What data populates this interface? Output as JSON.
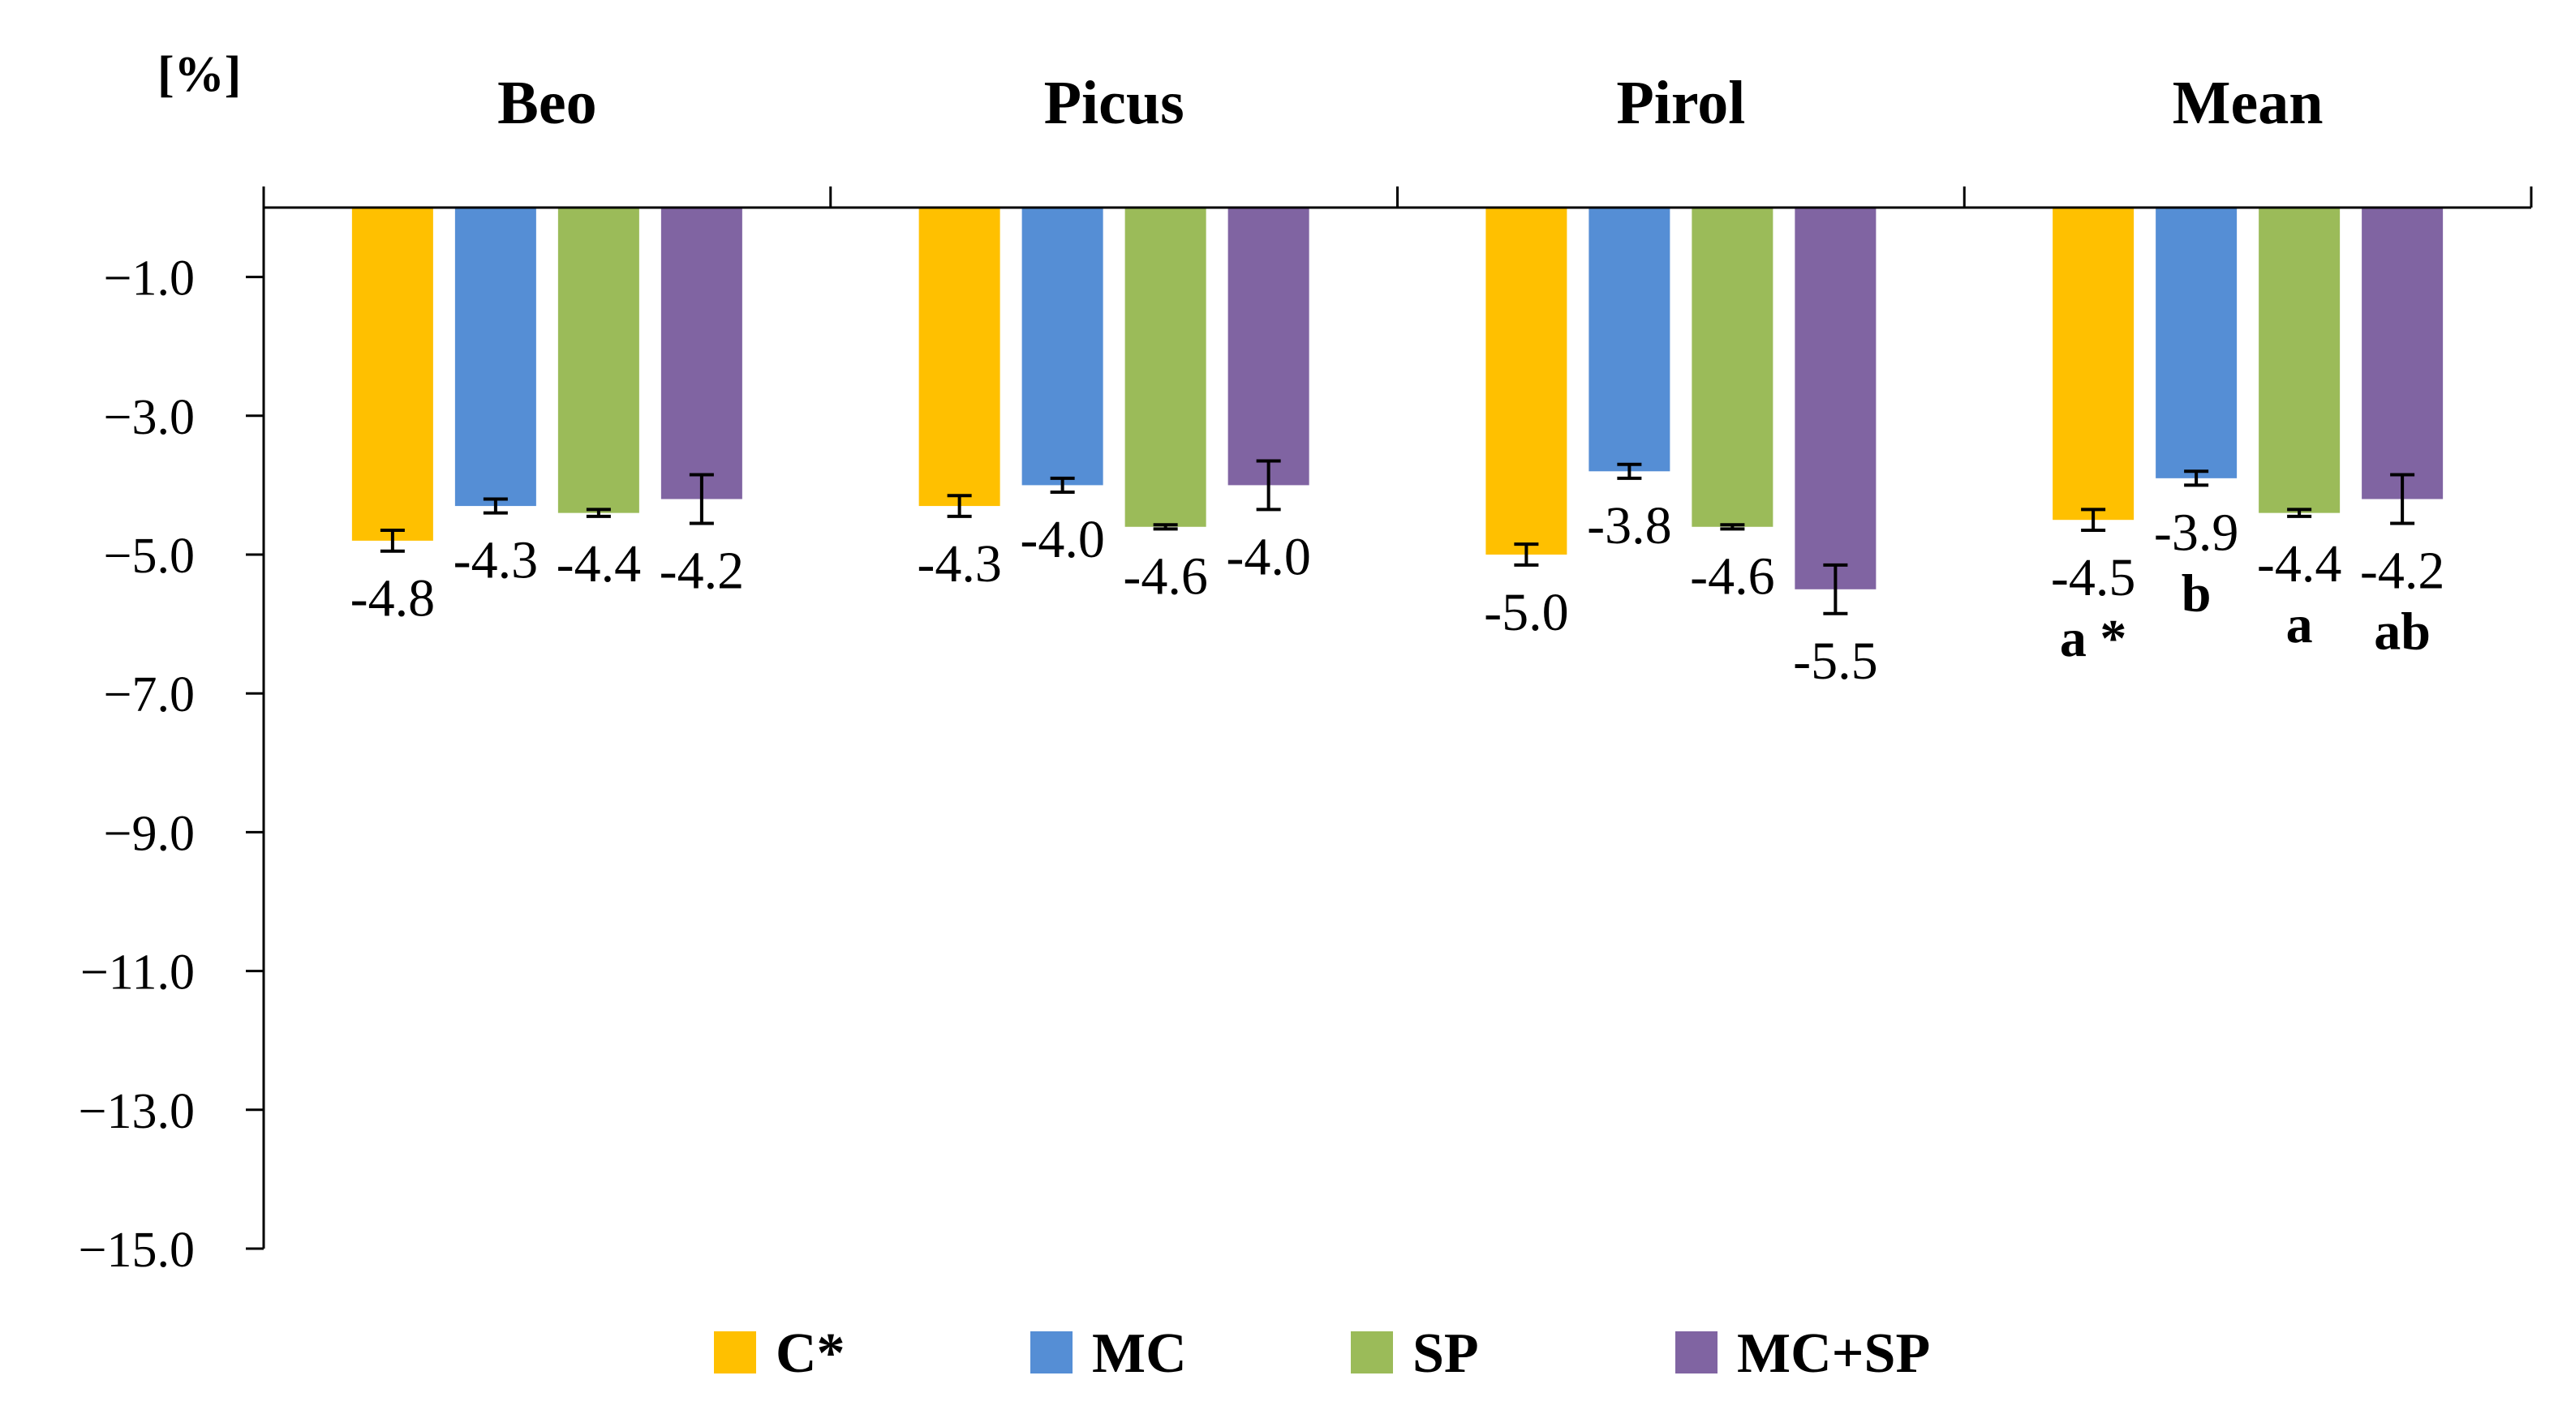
{
  "chart_data": {
    "type": "bar",
    "ylabel": "[%]",
    "ylim": [
      -15,
      0
    ],
    "yticks": [
      -1,
      -3,
      -5,
      -7,
      -9,
      -11,
      -13,
      -15
    ],
    "ytick_labels": [
      "−1.0",
      "−3.0",
      "−5.0",
      "−7.0",
      "−9.0",
      "−11.0",
      "−13.0",
      "−15.0"
    ],
    "categories": [
      "Beo",
      "Picus",
      "Pirol",
      "Mean"
    ],
    "series": [
      {
        "name": "C*",
        "color": "#FFC000",
        "values": [
          -4.8,
          -4.3,
          -5.0,
          -4.5
        ],
        "errors": [
          0.15,
          0.15,
          0.15,
          0.15
        ],
        "labels": [
          "-4.8",
          "-4.3",
          "-5.0",
          "-4.5"
        ],
        "letters": [
          "",
          "",
          "",
          "a *"
        ]
      },
      {
        "name": "MC",
        "color": "#558ED5",
        "values": [
          -4.3,
          -4.0,
          -3.8,
          -3.9
        ],
        "errors": [
          0.1,
          0.1,
          0.1,
          0.1
        ],
        "labels": [
          "-4.3",
          "-4.0",
          "-3.8",
          "-3.9"
        ],
        "letters": [
          "",
          "",
          "",
          "b"
        ]
      },
      {
        "name": "SP",
        "color": "#9BBB59",
        "values": [
          -4.4,
          -4.6,
          -4.6,
          -4.4
        ],
        "errors": [
          0.05,
          0.03,
          0.03,
          0.05
        ],
        "labels": [
          "-4.4",
          "-4.6",
          "-4.6",
          "-4.4"
        ],
        "letters": [
          "",
          "",
          "",
          "a"
        ]
      },
      {
        "name": "MC+SP",
        "color": "#8064A2",
        "values": [
          -4.2,
          -4.0,
          -5.5,
          -4.2
        ],
        "errors": [
          0.35,
          0.35,
          0.35,
          0.35
        ],
        "labels": [
          "-4.2",
          "-4.0",
          "-5.5",
          "-4.2"
        ],
        "letters": [
          "",
          "",
          "",
          "ab"
        ]
      }
    ]
  }
}
